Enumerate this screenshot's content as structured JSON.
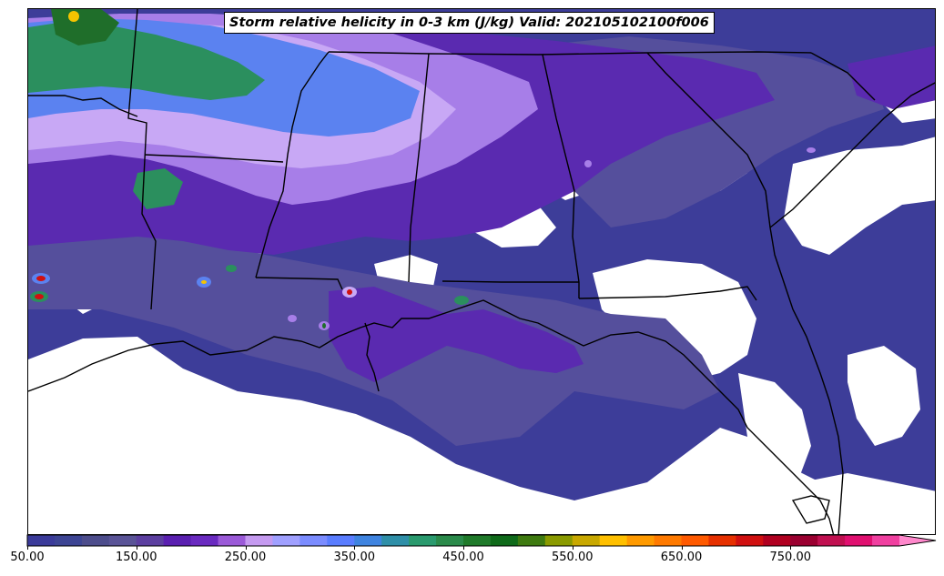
{
  "title": "Storm relative helicity in 0-3 km (J/kg) Valid: 202105102100f006",
  "colorbar": {
    "min": 50,
    "max": 850,
    "extend": "max",
    "step": 25,
    "colors": [
      "#3b3b9a",
      "#3d4594",
      "#4d4d8c",
      "#5a5497",
      "#5c3fa0",
      "#5a1fb0",
      "#6a2ac0",
      "#9b5ad8",
      "#c59af0",
      "#a0a0ff",
      "#7b8cff",
      "#5a7dff",
      "#3f84e0",
      "#2f8fa8",
      "#2a9a6e",
      "#2a8a4a",
      "#1f7a2a",
      "#0f6a1a",
      "#3e7a10",
      "#8a9a00",
      "#c8a800",
      "#ffc000",
      "#ff9a00",
      "#ff7a00",
      "#ff5a00",
      "#e63000",
      "#d01010",
      "#b00020",
      "#9a0030",
      "#c01050",
      "#e01070",
      "#f040a0",
      "#ff88cc"
    ],
    "ticks": [
      {
        "value": 50,
        "label": "50.00"
      },
      {
        "value": 150,
        "label": "150.00"
      },
      {
        "value": 250,
        "label": "250.00"
      },
      {
        "value": 350,
        "label": "350.00"
      },
      {
        "value": 450,
        "label": "450.00"
      },
      {
        "value": 550,
        "label": "550.00"
      },
      {
        "value": 650,
        "label": "650.00"
      },
      {
        "value": 750,
        "label": "750.00"
      }
    ]
  },
  "palette": {
    "low": "#3d3d99",
    "mid_low": "#554f9c",
    "mid": "#5c2ab0",
    "lavender": "#a77ee8",
    "light_lavender": "#c8a8f5",
    "blue": "#5b82f0",
    "green": "#2b8f5e",
    "dark_green": "#1f6e2a",
    "yellow": "#f5c400",
    "red": "#d01010",
    "background": "#ffffff",
    "boundary": "#000000"
  }
}
